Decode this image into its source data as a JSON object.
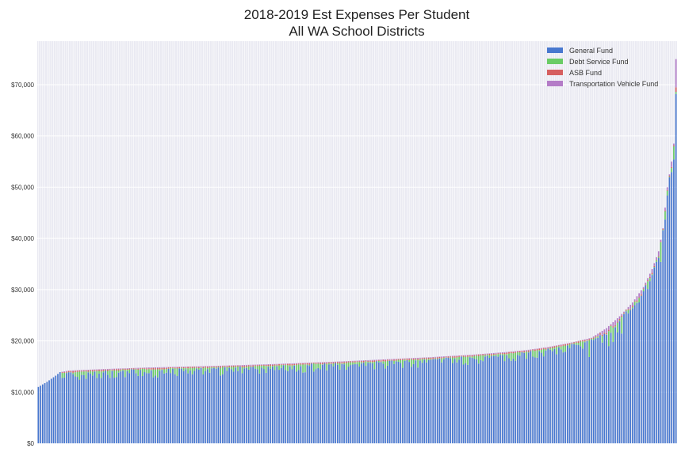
{
  "chart_data": {
    "type": "bar",
    "stacked": true,
    "title": "2018-2019 Est Expenses Per Student",
    "subtitle": "All WA School Districts",
    "xlabel": "",
    "ylabel": "",
    "ylim": [
      0,
      78500
    ],
    "yticks": [
      0,
      10000,
      20000,
      30000,
      40000,
      50000,
      60000,
      70000
    ],
    "ytick_labels": [
      "$0",
      "$10,000",
      "$20,000",
      "$30,000",
      "$40,000",
      "$50,000",
      "$60,000",
      "$70,000"
    ],
    "grid": true,
    "legend_position": "top-right",
    "category_count": 295,
    "series": [
      {
        "name": "General Fund",
        "color": "#4878cf"
      },
      {
        "name": "Debt Service Fund",
        "color": "#6acc65"
      },
      {
        "name": "ASB Fund",
        "color": "#d65f5f"
      },
      {
        "name": "Transportation Vehicle Fund",
        "color": "#b47cc7"
      }
    ],
    "total_profile": {
      "description_points_index_to_total": [
        [
          0,
          11000
        ],
        [
          4,
          12000
        ],
        [
          8,
          13200
        ],
        [
          10,
          13900
        ],
        [
          14,
          14200
        ],
        [
          30,
          14500
        ],
        [
          50,
          14800
        ],
        [
          80,
          15100
        ],
        [
          110,
          15500
        ],
        [
          140,
          16000
        ],
        [
          160,
          16400
        ],
        [
          180,
          16800
        ],
        [
          200,
          17300
        ],
        [
          215,
          17800
        ],
        [
          225,
          18200
        ],
        [
          235,
          18800
        ],
        [
          245,
          19600
        ],
        [
          255,
          20600
        ],
        [
          262,
          22500
        ],
        [
          268,
          24800
        ],
        [
          274,
          27500
        ],
        [
          279,
          30500
        ],
        [
          283,
          34000
        ],
        [
          286,
          37500
        ],
        [
          288,
          42000
        ],
        [
          290,
          50000
        ],
        [
          292,
          55000
        ],
        [
          293,
          58500
        ],
        [
          294,
          75000
        ]
      ]
    }
  }
}
